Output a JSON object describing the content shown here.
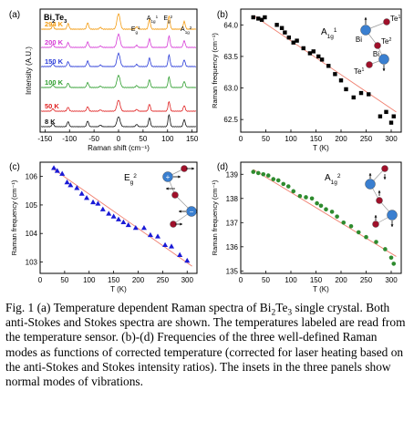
{
  "chart_data": [
    {
      "type": "line",
      "panel_label": "(a)",
      "material_label": "Bi2Te3",
      "xlabel": "Raman shift (cm⁻¹)",
      "ylabel": "Intensity (A.U.)",
      "xlim": [
        -160,
        160
      ],
      "xticks": [
        -150,
        -100,
        -50,
        0,
        50,
        100,
        150
      ],
      "series": [
        {
          "name": "294 K",
          "color": "#f39c12"
        },
        {
          "name": "200 K",
          "color": "#d63bd6"
        },
        {
          "name": "150 K",
          "color": "#2a3bd8"
        },
        {
          "name": "100 K",
          "color": "#2e9e2e"
        },
        {
          "name": "50 K",
          "color": "#e02020"
        },
        {
          "name": "8 K",
          "color": "#111111"
        }
      ],
      "peaks": [
        {
          "label": "Eg1",
          "x": 37
        },
        {
          "label": "A1g1",
          "x": 63
        },
        {
          "label": "Eg2",
          "x": 103
        },
        {
          "label": "A1g2",
          "x": 134
        }
      ]
    },
    {
      "type": "scatter",
      "panel_label": "(b)",
      "mode_label": "A1g1",
      "xlabel": "T (K)",
      "ylabel": "Raman frequency (cm⁻¹)",
      "xlim": [
        0,
        320
      ],
      "ylim": [
        62.3,
        64.25
      ],
      "xticks": [
        0,
        50,
        100,
        150,
        200,
        250,
        300
      ],
      "yticks": [
        62.5,
        63.0,
        63.5,
        64.0
      ],
      "ytick_labels": [
        "62.5",
        "63.0",
        "63.5",
        "64.0"
      ],
      "marker": "square",
      "color": "#000000",
      "x": [
        25,
        35,
        42,
        48,
        72,
        82,
        88,
        96,
        105,
        112,
        125,
        138,
        145,
        155,
        162,
        175,
        188,
        200,
        210,
        225,
        240,
        255,
        278,
        290,
        300,
        305
      ],
      "y": [
        64.12,
        64.1,
        64.08,
        64.12,
        64.0,
        63.95,
        63.88,
        63.8,
        63.72,
        63.75,
        63.63,
        63.55,
        63.58,
        63.5,
        63.45,
        63.35,
        63.22,
        63.12,
        62.98,
        62.85,
        62.92,
        62.9,
        62.55,
        62.62,
        62.45,
        62.55
      ],
      "fit": [
        [
          25,
          64.15
        ],
        [
          310,
          62.62
        ]
      ],
      "inset_labels": [
        "Bi",
        "Te1",
        "Te2",
        "Bi",
        "Te1"
      ]
    },
    {
      "type": "scatter",
      "panel_label": "(c)",
      "mode_label": "Eg2",
      "xlabel": "T (K)",
      "ylabel": "Raman frequency (cm⁻¹)",
      "xlim": [
        0,
        320
      ],
      "ylim": [
        102.6,
        106.5
      ],
      "xticks": [
        0,
        50,
        100,
        150,
        200,
        250,
        300
      ],
      "yticks": [
        103,
        104,
        105,
        106
      ],
      "ytick_labels": [
        "103",
        "104",
        "105",
        "106"
      ],
      "marker": "triangle",
      "color": "#1a1ad6",
      "x": [
        28,
        35,
        45,
        55,
        62,
        75,
        85,
        95,
        108,
        118,
        128,
        140,
        150,
        160,
        170,
        180,
        195,
        212,
        225,
        240,
        255,
        268,
        285,
        300
      ],
      "y": [
        106.3,
        106.2,
        106.1,
        105.8,
        105.7,
        105.6,
        105.4,
        105.25,
        105.1,
        105.05,
        104.85,
        104.7,
        104.6,
        104.5,
        104.4,
        104.3,
        104.2,
        104.2,
        103.95,
        103.9,
        103.6,
        103.55,
        103.25,
        103.05
      ],
      "fit": [
        [
          28,
          106.25
        ],
        [
          310,
          102.85
        ]
      ]
    },
    {
      "type": "scatter",
      "panel_label": "(d)",
      "mode_label": "A1g2",
      "xlabel": "T (K)",
      "ylabel": "Raman frequency (cm⁻¹)",
      "xlim": [
        0,
        320
      ],
      "ylim": [
        134.9,
        139.5
      ],
      "xticks": [
        0,
        50,
        100,
        150,
        200,
        250,
        300
      ],
      "yticks": [
        135,
        136,
        137,
        138,
        139
      ],
      "ytick_labels": [
        "135",
        "136",
        "137",
        "138",
        "139"
      ],
      "marker": "circle",
      "color": "#2e8b2e",
      "x": [
        25,
        35,
        45,
        55,
        65,
        75,
        85,
        95,
        105,
        118,
        130,
        142,
        152,
        160,
        170,
        182,
        192,
        205,
        220,
        235,
        250,
        270,
        288,
        300,
        305
      ],
      "y": [
        139.1,
        139.05,
        139.0,
        138.95,
        138.8,
        138.75,
        138.6,
        138.5,
        138.3,
        138.1,
        138.05,
        138.0,
        137.8,
        137.7,
        137.55,
        137.45,
        137.25,
        137.0,
        136.85,
        136.6,
        136.4,
        136.2,
        135.9,
        135.55,
        135.3
      ],
      "fit": [
        [
          25,
          139.2
        ],
        [
          310,
          135.6
        ]
      ]
    }
  ],
  "caption": {
    "prefix": "Fig. 1 (a) Temperature dependent Raman spectra of Bi",
    "sub1": "2",
    "mid": "Te",
    "sub2": "3",
    "rest": " single crystal. Both anti-Stokes and Stokes spectra are shown. The temperatures labeled are read from the temperature sensor. (b)-(d) Frequencies of the three well-defined Raman modes as functions of corrected temperature (corrected for laser heating based on the anti-Stokes and Stokes intensity ratios). The insets in the three panels show normal modes of vibrations."
  }
}
